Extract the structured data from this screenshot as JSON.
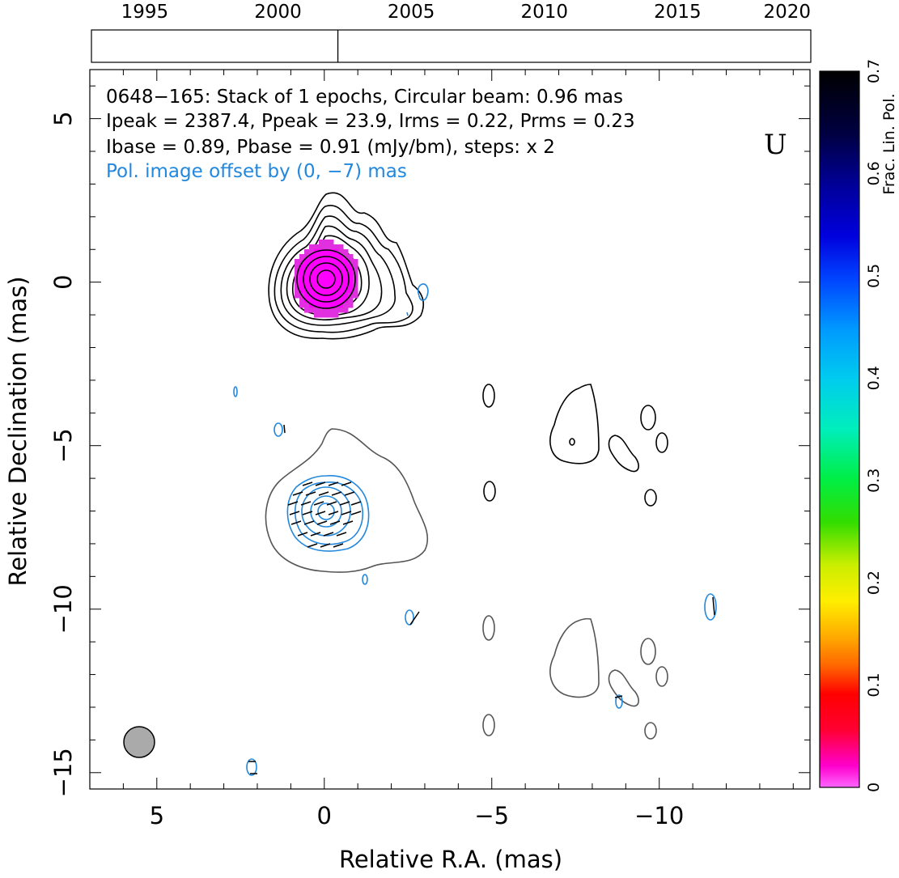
{
  "chart_data": {
    "type": "contour",
    "source_name": "0648−165",
    "xlabel": "Relative R.A. (mas)",
    "ylabel": "Relative Declination (mas)",
    "xlim": [
      7.0,
      -14.5
    ],
    "ylim": [
      -15.5,
      6.5
    ],
    "x_ticks": [
      "5",
      "0",
      "−5",
      "−10"
    ],
    "x_tick_values": [
      5,
      0,
      -5,
      -10
    ],
    "y_ticks": [
      "5",
      "0",
      "−5",
      "−10",
      "−15"
    ],
    "y_tick_values": [
      5,
      0,
      -5,
      -10,
      -15
    ],
    "annotations": {
      "line1": "0648−165: Stack of 1 epochs, Circular beam: 0.96 mas",
      "line2": "Ipeak = 2387.4, Ppeak = 23.9, Irms = 0.22, Prms = 0.23",
      "line3": "Ibase = 0.89, Pbase = 0.91 (mJy/bm), steps: x 2",
      "line4": "Pol. image offset by (0, −7) mas",
      "corner_label": "U"
    },
    "beam": {
      "x": 5.7,
      "y": -13.9,
      "diameter_mas": 0.96
    },
    "timeline": {
      "ticks": [
        "1995",
        "2000",
        "2005",
        "2010",
        "2015",
        "2020"
      ],
      "tick_values": [
        1995,
        2000,
        2005,
        2010,
        2015,
        2020
      ],
      "range": [
        1993.0,
        2020.0
      ],
      "epochs": [
        2002.25
      ]
    },
    "colorbar": {
      "label": "Frac. Lin. Pol.",
      "ticks": [
        "0",
        "0.1",
        "0.2",
        "0.3",
        "0.4",
        "0.5",
        "0.6",
        "0.7"
      ],
      "range": [
        0,
        0.7
      ]
    },
    "colors": {
      "stokes_i": "#000000",
      "pol_contours": "#2288dd",
      "pol_total_intensity": "#555555",
      "core_fill": "#ff00ff",
      "beam_fill": "#aaaaaa"
    }
  }
}
